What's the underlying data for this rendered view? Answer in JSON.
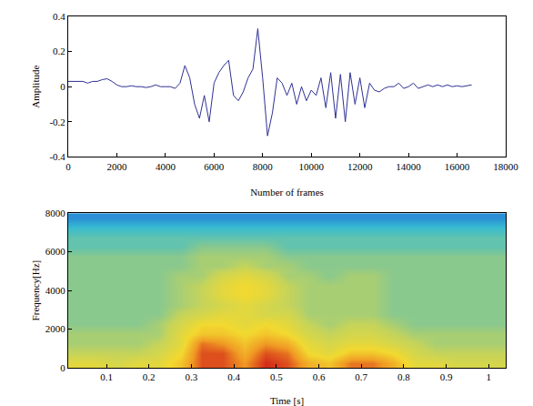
{
  "chart_data": [
    {
      "type": "line",
      "xlabel": "Number of frames",
      "ylabel": "Amplitude",
      "color": "#2e3192",
      "x": [
        0,
        200,
        400,
        600,
        800,
        1000,
        1200,
        1400,
        1600,
        1800,
        2000,
        2200,
        2400,
        2600,
        2800,
        3000,
        3200,
        3400,
        3600,
        3800,
        4000,
        4200,
        4400,
        4600,
        4800,
        5000,
        5200,
        5400,
        5600,
        5800,
        6000,
        6200,
        6400,
        6600,
        6800,
        7000,
        7200,
        7400,
        7600,
        7800,
        8000,
        8200,
        8400,
        8600,
        8800,
        9000,
        9200,
        9400,
        9600,
        9800,
        10000,
        10200,
        10400,
        10600,
        10800,
        11000,
        11200,
        11400,
        11600,
        11800,
        12000,
        12200,
        12400,
        12600,
        12800,
        13000,
        13200,
        13400,
        13600,
        13800,
        14000,
        14200,
        14400,
        14600,
        14800,
        15000,
        15200,
        15400,
        15600,
        15800,
        16000,
        16200,
        16400,
        16600
      ],
      "values": [
        0.03,
        0.03,
        0.03,
        0.03,
        0.02,
        0.03,
        0.03,
        0.04,
        0.045,
        0.03,
        0.01,
        0.0,
        0.0,
        0.005,
        0.0,
        0.0,
        -0.005,
        0.0,
        0.01,
        0.0,
        0.0,
        0.0,
        -0.01,
        0.02,
        0.12,
        0.05,
        -0.1,
        -0.18,
        -0.05,
        -0.2,
        0.02,
        0.08,
        0.12,
        0.15,
        -0.05,
        -0.08,
        -0.03,
        0.05,
        0.1,
        0.33,
        0.05,
        -0.28,
        -0.15,
        0.05,
        0.02,
        -0.05,
        0.02,
        -0.1,
        0.0,
        -0.08,
        -0.02,
        -0.05,
        0.05,
        -0.12,
        0.08,
        -0.18,
        0.07,
        -0.2,
        0.08,
        -0.1,
        0.05,
        -0.12,
        0.02,
        -0.02,
        -0.03,
        -0.01,
        0.0,
        0.0,
        0.02,
        -0.01,
        0.0,
        0.02,
        -0.01,
        0.0,
        0.01,
        0.0,
        0.01,
        0.0,
        0.01,
        0.0,
        0.005,
        0.0,
        0.005,
        0.01
      ],
      "xlim": [
        0,
        18000
      ],
      "xticks": [
        0,
        2000,
        4000,
        6000,
        8000,
        10000,
        12000,
        14000,
        16000,
        18000
      ],
      "ylim": [
        -0.4,
        0.4
      ],
      "yticks": [
        -0.4,
        -0.2,
        0,
        0.2,
        0.4
      ]
    },
    {
      "type": "heatmap",
      "xlabel": "Time [s]",
      "ylabel": "Frequency[Hz]",
      "x": [
        0.025,
        0.075,
        0.125,
        0.175,
        0.225,
        0.275,
        0.325,
        0.375,
        0.425,
        0.475,
        0.525,
        0.575,
        0.625,
        0.675,
        0.725,
        0.775,
        0.825,
        0.875,
        0.925,
        0.975,
        1.025
      ],
      "y": [
        250,
        750,
        1250,
        1750,
        2250,
        2750,
        3250,
        3750,
        4250,
        4750,
        5250,
        5750,
        6250,
        6750,
        7250,
        7750
      ],
      "cells": [
        [
          6.5,
          6.5,
          6,
          6.5,
          6.5,
          7.5,
          9.5,
          9.5,
          8.5,
          10,
          9.5,
          8,
          7.5,
          9,
          9,
          8,
          6.5,
          6.5,
          6,
          6,
          6
        ],
        [
          5.5,
          5.5,
          5.5,
          5.5,
          6,
          7,
          9.5,
          9.5,
          8,
          9.5,
          9,
          7,
          6.5,
          7.5,
          7.5,
          7,
          6,
          5.5,
          5.5,
          5.5,
          5.5
        ],
        [
          5,
          5,
          5,
          5,
          5.5,
          6.5,
          9,
          8.5,
          7.5,
          8.5,
          8,
          6.5,
          6,
          6.5,
          6.5,
          6,
          5.5,
          5,
          5,
          5,
          5
        ],
        [
          5,
          5,
          5,
          5,
          5,
          6.5,
          7.5,
          7.5,
          7,
          7.5,
          7,
          6,
          5.5,
          6,
          6,
          5.5,
          5,
          5,
          5,
          5,
          5
        ],
        [
          4.5,
          4.5,
          4.5,
          4.5,
          5,
          6,
          7,
          7,
          6.5,
          7,
          6.5,
          5.5,
          5,
          5.5,
          5.5,
          5,
          4.5,
          4.5,
          4.5,
          4.5,
          4.5
        ],
        [
          4.5,
          4.5,
          4.5,
          4.5,
          4.5,
          5.5,
          6,
          6.5,
          6.5,
          6,
          6,
          5,
          5,
          5,
          5,
          4.5,
          4.5,
          4.5,
          4.5,
          4.5,
          4.5
        ],
        [
          4.5,
          4.5,
          4.5,
          4.5,
          4.5,
          5,
          5.5,
          6,
          6.5,
          6,
          5.5,
          5,
          5,
          5,
          5,
          4.5,
          4.5,
          4.5,
          4.5,
          4.5,
          4.5
        ],
        [
          4.5,
          4.5,
          4.5,
          4.5,
          4.5,
          5,
          5.5,
          6.5,
          7,
          6.5,
          5.5,
          5,
          5,
          5,
          5,
          4.5,
          4.5,
          4.5,
          4.5,
          4.5,
          4.5
        ],
        [
          4.5,
          4.5,
          4.5,
          4.5,
          4.5,
          5,
          5.5,
          6.5,
          7,
          6.5,
          5.5,
          5,
          5,
          5,
          5,
          4.5,
          4.5,
          4.5,
          4.5,
          4.5,
          4.5
        ],
        [
          4.5,
          4.5,
          4.5,
          4.5,
          4.5,
          5,
          5,
          6,
          6.5,
          6,
          5,
          5,
          4.5,
          5,
          5,
          4.5,
          4.5,
          4.5,
          4.5,
          4.5,
          4.5
        ],
        [
          4.5,
          4.5,
          4.5,
          4.5,
          4.5,
          4.5,
          5,
          5,
          5.5,
          5,
          5,
          4.5,
          4.5,
          4.5,
          4.5,
          4.5,
          4.5,
          4.5,
          4.5,
          4.5,
          4.5
        ],
        [
          4.5,
          4.5,
          4.5,
          4.5,
          4.5,
          4.5,
          5,
          5,
          5,
          5,
          4.5,
          4.5,
          4.5,
          4.5,
          4.5,
          4.5,
          4.5,
          4.5,
          4.5,
          4.5,
          4.5
        ],
        [
          4,
          4,
          4,
          4,
          4,
          4,
          4.5,
          4.5,
          4.5,
          4.5,
          4,
          4,
          4,
          4,
          4,
          4,
          4,
          4,
          4,
          4,
          4
        ],
        [
          4,
          4,
          4,
          4,
          4,
          4,
          4,
          4,
          4,
          4,
          4,
          4,
          4,
          4,
          4,
          4,
          4,
          4,
          4,
          4,
          4
        ],
        [
          3.5,
          3.5,
          3.5,
          3.5,
          3.5,
          3.5,
          3.5,
          3.5,
          3.5,
          3.5,
          3.5,
          3.5,
          3.5,
          3.5,
          3.5,
          3.5,
          3.5,
          3.5,
          3.5,
          3.5,
          3.5
        ],
        [
          2.5,
          2.5,
          2.5,
          2.5,
          2.5,
          2.5,
          2.5,
          2.5,
          2.5,
          2.5,
          2.5,
          2.5,
          2.5,
          2.5,
          2.5,
          2.5,
          2.5,
          2.5,
          2.5,
          2.5,
          2.5
        ]
      ],
      "xlim": [
        0.01,
        1.04
      ],
      "xticks": [
        0.1,
        0.2,
        0.3,
        0.4,
        0.5,
        0.6,
        0.7,
        0.8,
        0.9,
        1
      ],
      "ylim": [
        0,
        8000
      ],
      "yticks": [
        0,
        2000,
        4000,
        6000,
        8000
      ]
    }
  ]
}
